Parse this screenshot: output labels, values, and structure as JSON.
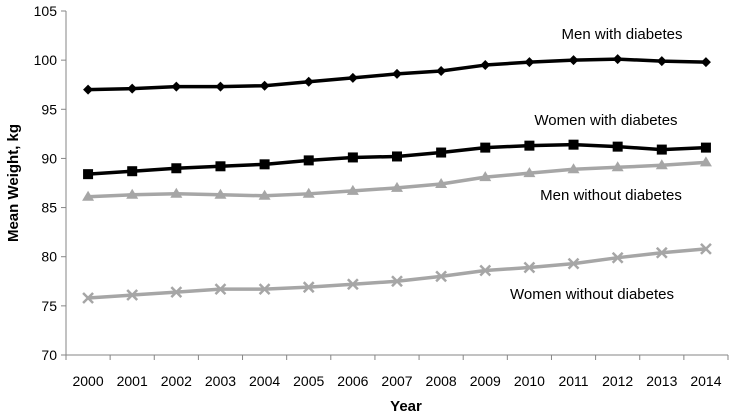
{
  "chart_data": {
    "type": "line",
    "title": "",
    "xlabel": "Year",
    "ylabel": "Mean Weight, kg",
    "ylim": [
      70,
      105
    ],
    "yticks": [
      70,
      75,
      80,
      85,
      90,
      95,
      100,
      105
    ],
    "grid": false,
    "legend": "none",
    "categories": [
      "2000",
      "2001",
      "2002",
      "2003",
      "2004",
      "2005",
      "2006",
      "2007",
      "2008",
      "2009",
      "2010",
      "2011",
      "2012",
      "2013",
      "2014"
    ],
    "series": [
      {
        "name": "Men with diabetes",
        "color": "#000000",
        "marker": "diamond",
        "values": [
          97.0,
          97.1,
          97.3,
          97.3,
          97.4,
          97.8,
          98.2,
          98.6,
          98.9,
          99.5,
          99.8,
          100.0,
          100.1,
          99.9,
          99.8
        ]
      },
      {
        "name": "Women with diabetes",
        "color": "#000000",
        "marker": "square",
        "values": [
          88.4,
          88.7,
          89.0,
          89.2,
          89.4,
          89.8,
          90.1,
          90.2,
          90.6,
          91.1,
          91.3,
          91.4,
          91.2,
          90.9,
          91.1
        ]
      },
      {
        "name": "Men without diabetes",
        "color": "#a6a6a6",
        "marker": "triangle",
        "values": [
          86.1,
          86.3,
          86.4,
          86.3,
          86.2,
          86.4,
          86.7,
          87.0,
          87.4,
          88.1,
          88.5,
          88.9,
          89.1,
          89.3,
          89.6
        ]
      },
      {
        "name": "Women without diabetes",
        "color": "#a6a6a6",
        "marker": "x",
        "values": [
          75.8,
          76.1,
          76.4,
          76.7,
          76.7,
          76.9,
          77.2,
          77.5,
          78.0,
          78.6,
          78.9,
          79.3,
          79.9,
          80.4,
          80.8
        ]
      }
    ]
  }
}
